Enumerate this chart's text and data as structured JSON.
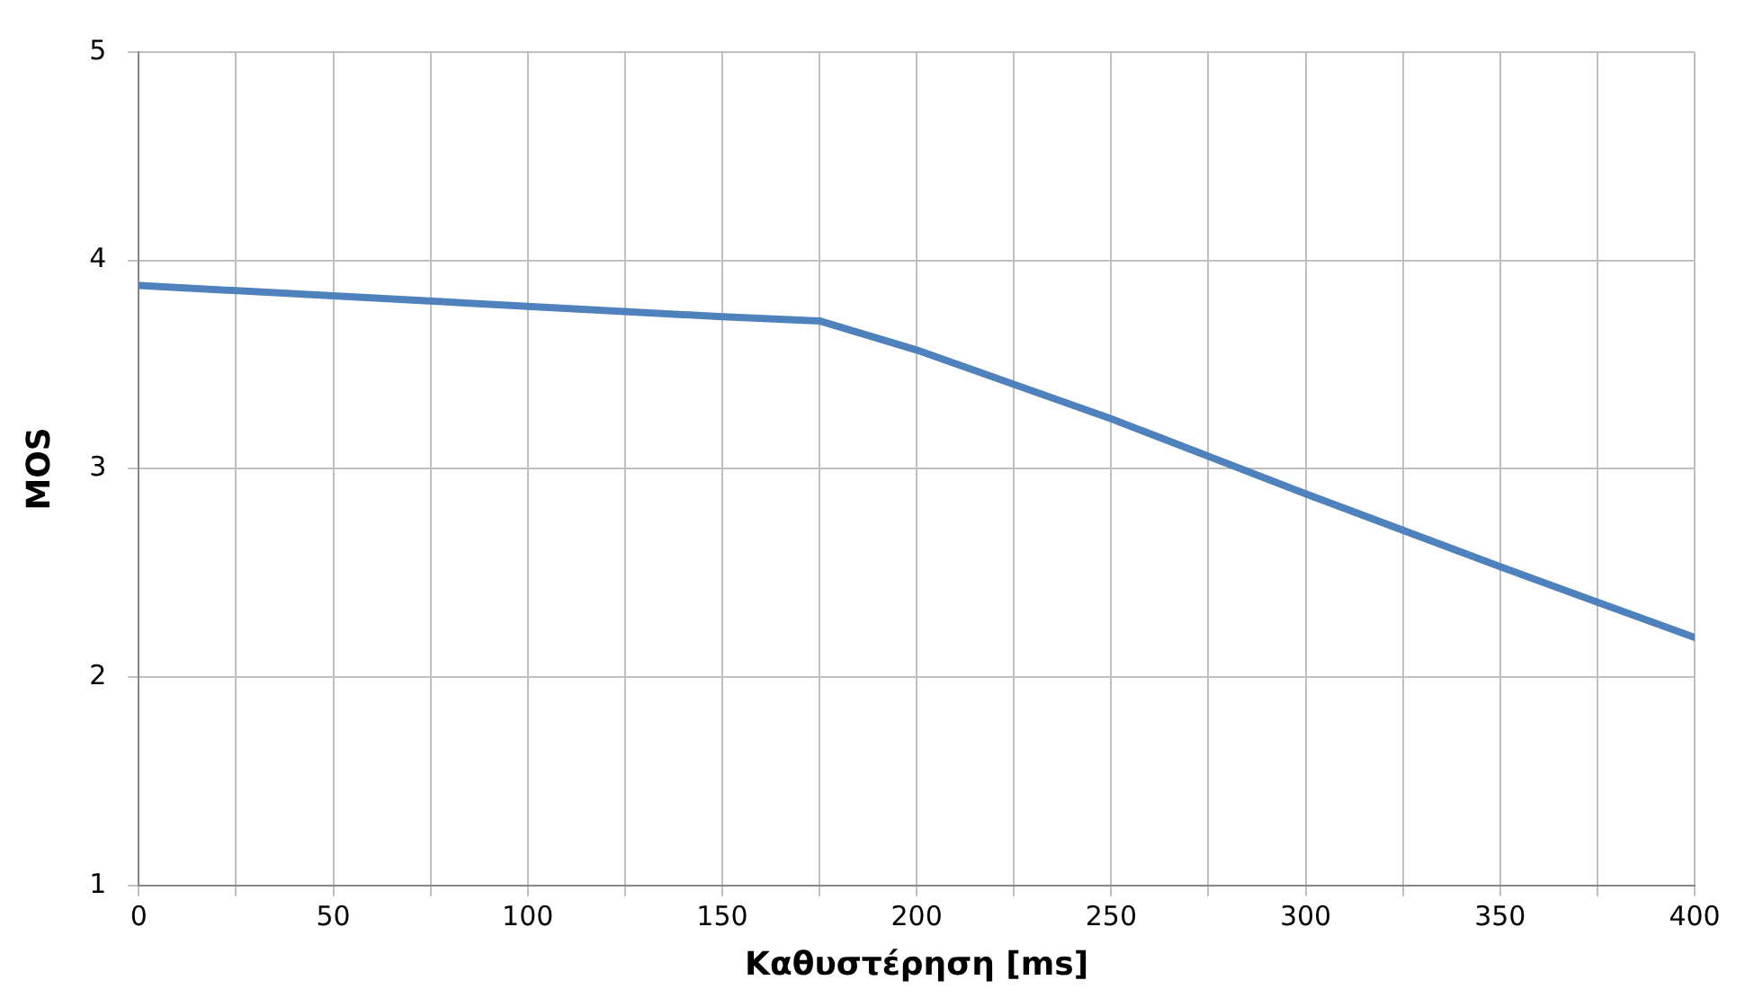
{
  "chart_data": {
    "type": "line",
    "xlabel": "Καθυστέρηση [ms]",
    "ylabel": "MOS",
    "x": [
      0,
      50,
      100,
      150,
      175,
      200,
      250,
      300,
      350,
      400
    ],
    "series": [
      {
        "color": "#4f81bd",
        "values": [
          3.88,
          3.83,
          3.78,
          3.73,
          3.71,
          3.57,
          3.24,
          2.88,
          2.53,
          2.19
        ]
      }
    ],
    "xlim": [
      0,
      400
    ],
    "xticks": [
      0,
      {
        "value": 25,
        "label": null
      },
      50,
      {
        "value": 75,
        "label": null
      },
      100,
      {
        "value": 125,
        "label": null
      },
      150,
      {
        "value": 175,
        "label": null
      },
      200,
      {
        "value": 225,
        "label": null
      },
      250,
      {
        "value": 275,
        "label": null
      },
      300,
      {
        "value": 325,
        "label": null
      },
      350,
      {
        "value": 375,
        "label": null
      },
      400
    ],
    "ylim": [
      1,
      5
    ],
    "yticks": [
      1,
      2,
      3,
      4,
      5
    ],
    "grid": true,
    "legend": false,
    "marker": "none",
    "line_style": "solid"
  }
}
